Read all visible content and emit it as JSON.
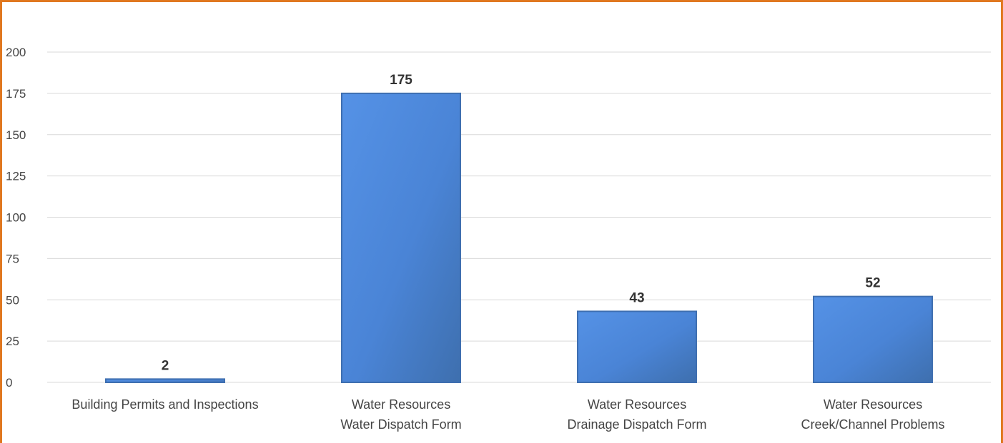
{
  "chart_data": {
    "type": "bar",
    "categories": [
      [
        "Building Permits and Inspections"
      ],
      [
        "Water Resources",
        "Water Dispatch Form"
      ],
      [
        "Water Resources",
        "Drainage Dispatch Form"
      ],
      [
        "Water Resources",
        "Creek/Channel Problems"
      ]
    ],
    "values": [
      2,
      175,
      43,
      52
    ],
    "data_labels": [
      "2",
      "175",
      "43",
      "52"
    ],
    "yticks": [
      "0",
      "25",
      "50",
      "75",
      "100",
      "125",
      "150",
      "175",
      "200"
    ],
    "ylim": [
      0,
      200
    ],
    "grid": true,
    "legend": "none",
    "bar_color": "#4A86D8",
    "bar_color_dark": "#3F6FB0",
    "frame_color": "#E07820"
  }
}
